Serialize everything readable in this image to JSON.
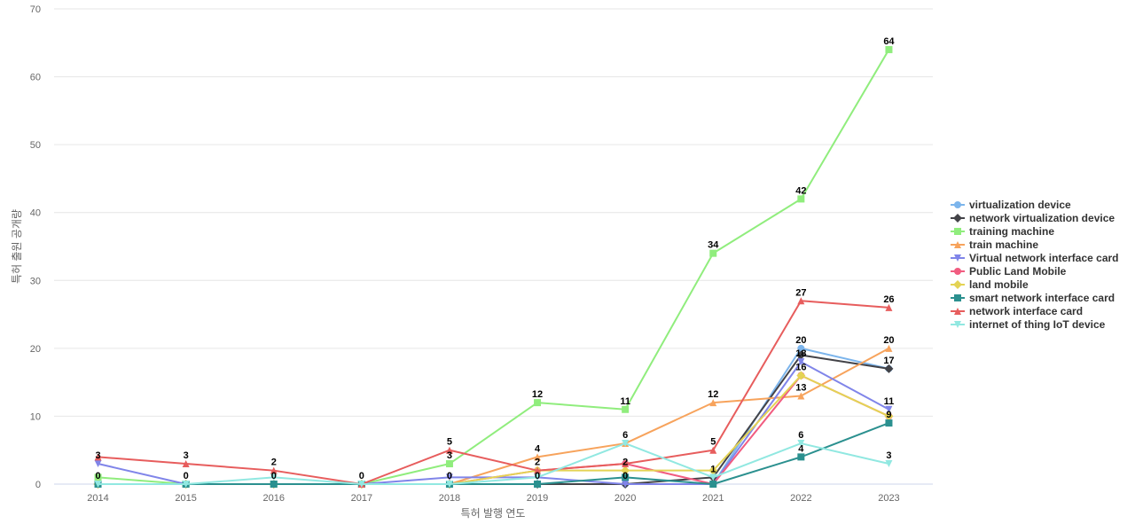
{
  "chart_data": {
    "type": "line",
    "xlabel": "특허 발행 연도",
    "ylabel": "특허 출원 공개량",
    "ylim": [
      0,
      70
    ],
    "y_ticks": [
      0,
      10,
      20,
      30,
      40,
      50,
      60,
      70
    ],
    "grid": true,
    "legend_position": "right",
    "categories": [
      "2014",
      "2015",
      "2016",
      "2017",
      "2018",
      "2019",
      "2020",
      "2021",
      "2022",
      "2023"
    ],
    "series": [
      {
        "name": "virtualization device",
        "color": "#7cb5ec",
        "marker": "circle",
        "values": [
          0,
          0,
          0,
          0,
          0,
          0,
          0,
          0,
          20,
          17
        ]
      },
      {
        "name": "network virtualization device",
        "color": "#434348",
        "marker": "diamond",
        "values": [
          0,
          0,
          0,
          0,
          0,
          0,
          0,
          1,
          19,
          17
        ]
      },
      {
        "name": "training machine",
        "color": "#90ed7d",
        "marker": "square",
        "values": [
          1,
          0,
          0,
          0,
          3,
          12,
          11,
          34,
          42,
          64
        ]
      },
      {
        "name": "train machine",
        "color": "#f7a35c",
        "marker": "triangle",
        "values": [
          0,
          0,
          0,
          0,
          0,
          4,
          6,
          12,
          13,
          20
        ]
      },
      {
        "name": "Virtual network interface card",
        "color": "#8085e9",
        "marker": "triangle-down",
        "values": [
          3,
          0,
          0,
          0,
          1,
          1,
          0,
          0,
          18,
          11
        ]
      },
      {
        "name": "Public Land Mobile",
        "color": "#f15c80",
        "marker": "circle",
        "values": [
          0,
          0,
          0,
          0,
          0,
          2,
          3,
          0,
          16,
          10
        ]
      },
      {
        "name": "land mobile",
        "color": "#e4d354",
        "marker": "diamond",
        "values": [
          0,
          0,
          0,
          0,
          0,
          2,
          2,
          2,
          16,
          10
        ]
      },
      {
        "name": "smart network interface card",
        "color": "#2b908f",
        "marker": "square",
        "values": [
          0,
          0,
          0,
          0,
          0,
          0,
          1,
          0,
          4,
          9
        ]
      },
      {
        "name": "network interface card",
        "color": "#e75d5d",
        "marker": "triangle",
        "values": [
          4,
          3,
          2,
          0,
          5,
          2,
          3,
          5,
          27,
          26
        ]
      },
      {
        "name": "internet of thing IoT device",
        "color": "#91e8e1",
        "marker": "triangle-down",
        "values": [
          0,
          0,
          1,
          0,
          0,
          1,
          6,
          1,
          6,
          3
        ]
      }
    ],
    "data_labels": [
      {
        "x": "2014",
        "text": "3",
        "y": 3
      },
      {
        "x": "2014",
        "text": "0",
        "y": 0
      },
      {
        "x": "2015",
        "text": "3",
        "y": 3
      },
      {
        "x": "2015",
        "text": "0",
        "y": 0
      },
      {
        "x": "2016",
        "text": "2",
        "y": 2
      },
      {
        "x": "2016",
        "text": "0",
        "y": 0
      },
      {
        "x": "2017",
        "text": "0",
        "y": 0
      },
      {
        "x": "2018",
        "text": "5",
        "y": 5
      },
      {
        "x": "2018",
        "text": "3",
        "y": 3
      },
      {
        "x": "2018",
        "text": "0",
        "y": 0
      },
      {
        "x": "2019",
        "text": "12",
        "y": 12
      },
      {
        "x": "2019",
        "text": "4",
        "y": 4
      },
      {
        "x": "2019",
        "text": "2",
        "y": 2
      },
      {
        "x": "2019",
        "text": "0",
        "y": 0
      },
      {
        "x": "2020",
        "text": "11",
        "y": 11
      },
      {
        "x": "2020",
        "text": "6",
        "y": 6
      },
      {
        "x": "2020",
        "text": "2",
        "y": 2
      },
      {
        "x": "2020",
        "text": "0",
        "y": 0
      },
      {
        "x": "2021",
        "text": "34",
        "y": 34
      },
      {
        "x": "2021",
        "text": "12",
        "y": 12
      },
      {
        "x": "2021",
        "text": "5",
        "y": 5
      },
      {
        "x": "2021",
        "text": "1",
        "y": 1
      },
      {
        "x": "2022",
        "text": "42",
        "y": 42
      },
      {
        "x": "2022",
        "text": "27",
        "y": 27
      },
      {
        "x": "2022",
        "text": "20",
        "y": 20
      },
      {
        "x": "2022",
        "text": "18",
        "y": 18
      },
      {
        "x": "2022",
        "text": "16",
        "y": 16
      },
      {
        "x": "2022",
        "text": "13",
        "y": 13
      },
      {
        "x": "2022",
        "text": "6",
        "y": 6
      },
      {
        "x": "2022",
        "text": "4",
        "y": 4
      },
      {
        "x": "2023",
        "text": "64",
        "y": 64
      },
      {
        "x": "2023",
        "text": "26",
        "y": 26
      },
      {
        "x": "2023",
        "text": "20",
        "y": 20
      },
      {
        "x": "2023",
        "text": "17",
        "y": 17
      },
      {
        "x": "2023",
        "text": "11",
        "y": 11
      },
      {
        "x": "2023",
        "text": "9",
        "y": 9
      },
      {
        "x": "2023",
        "text": "3",
        "y": 3
      }
    ]
  }
}
